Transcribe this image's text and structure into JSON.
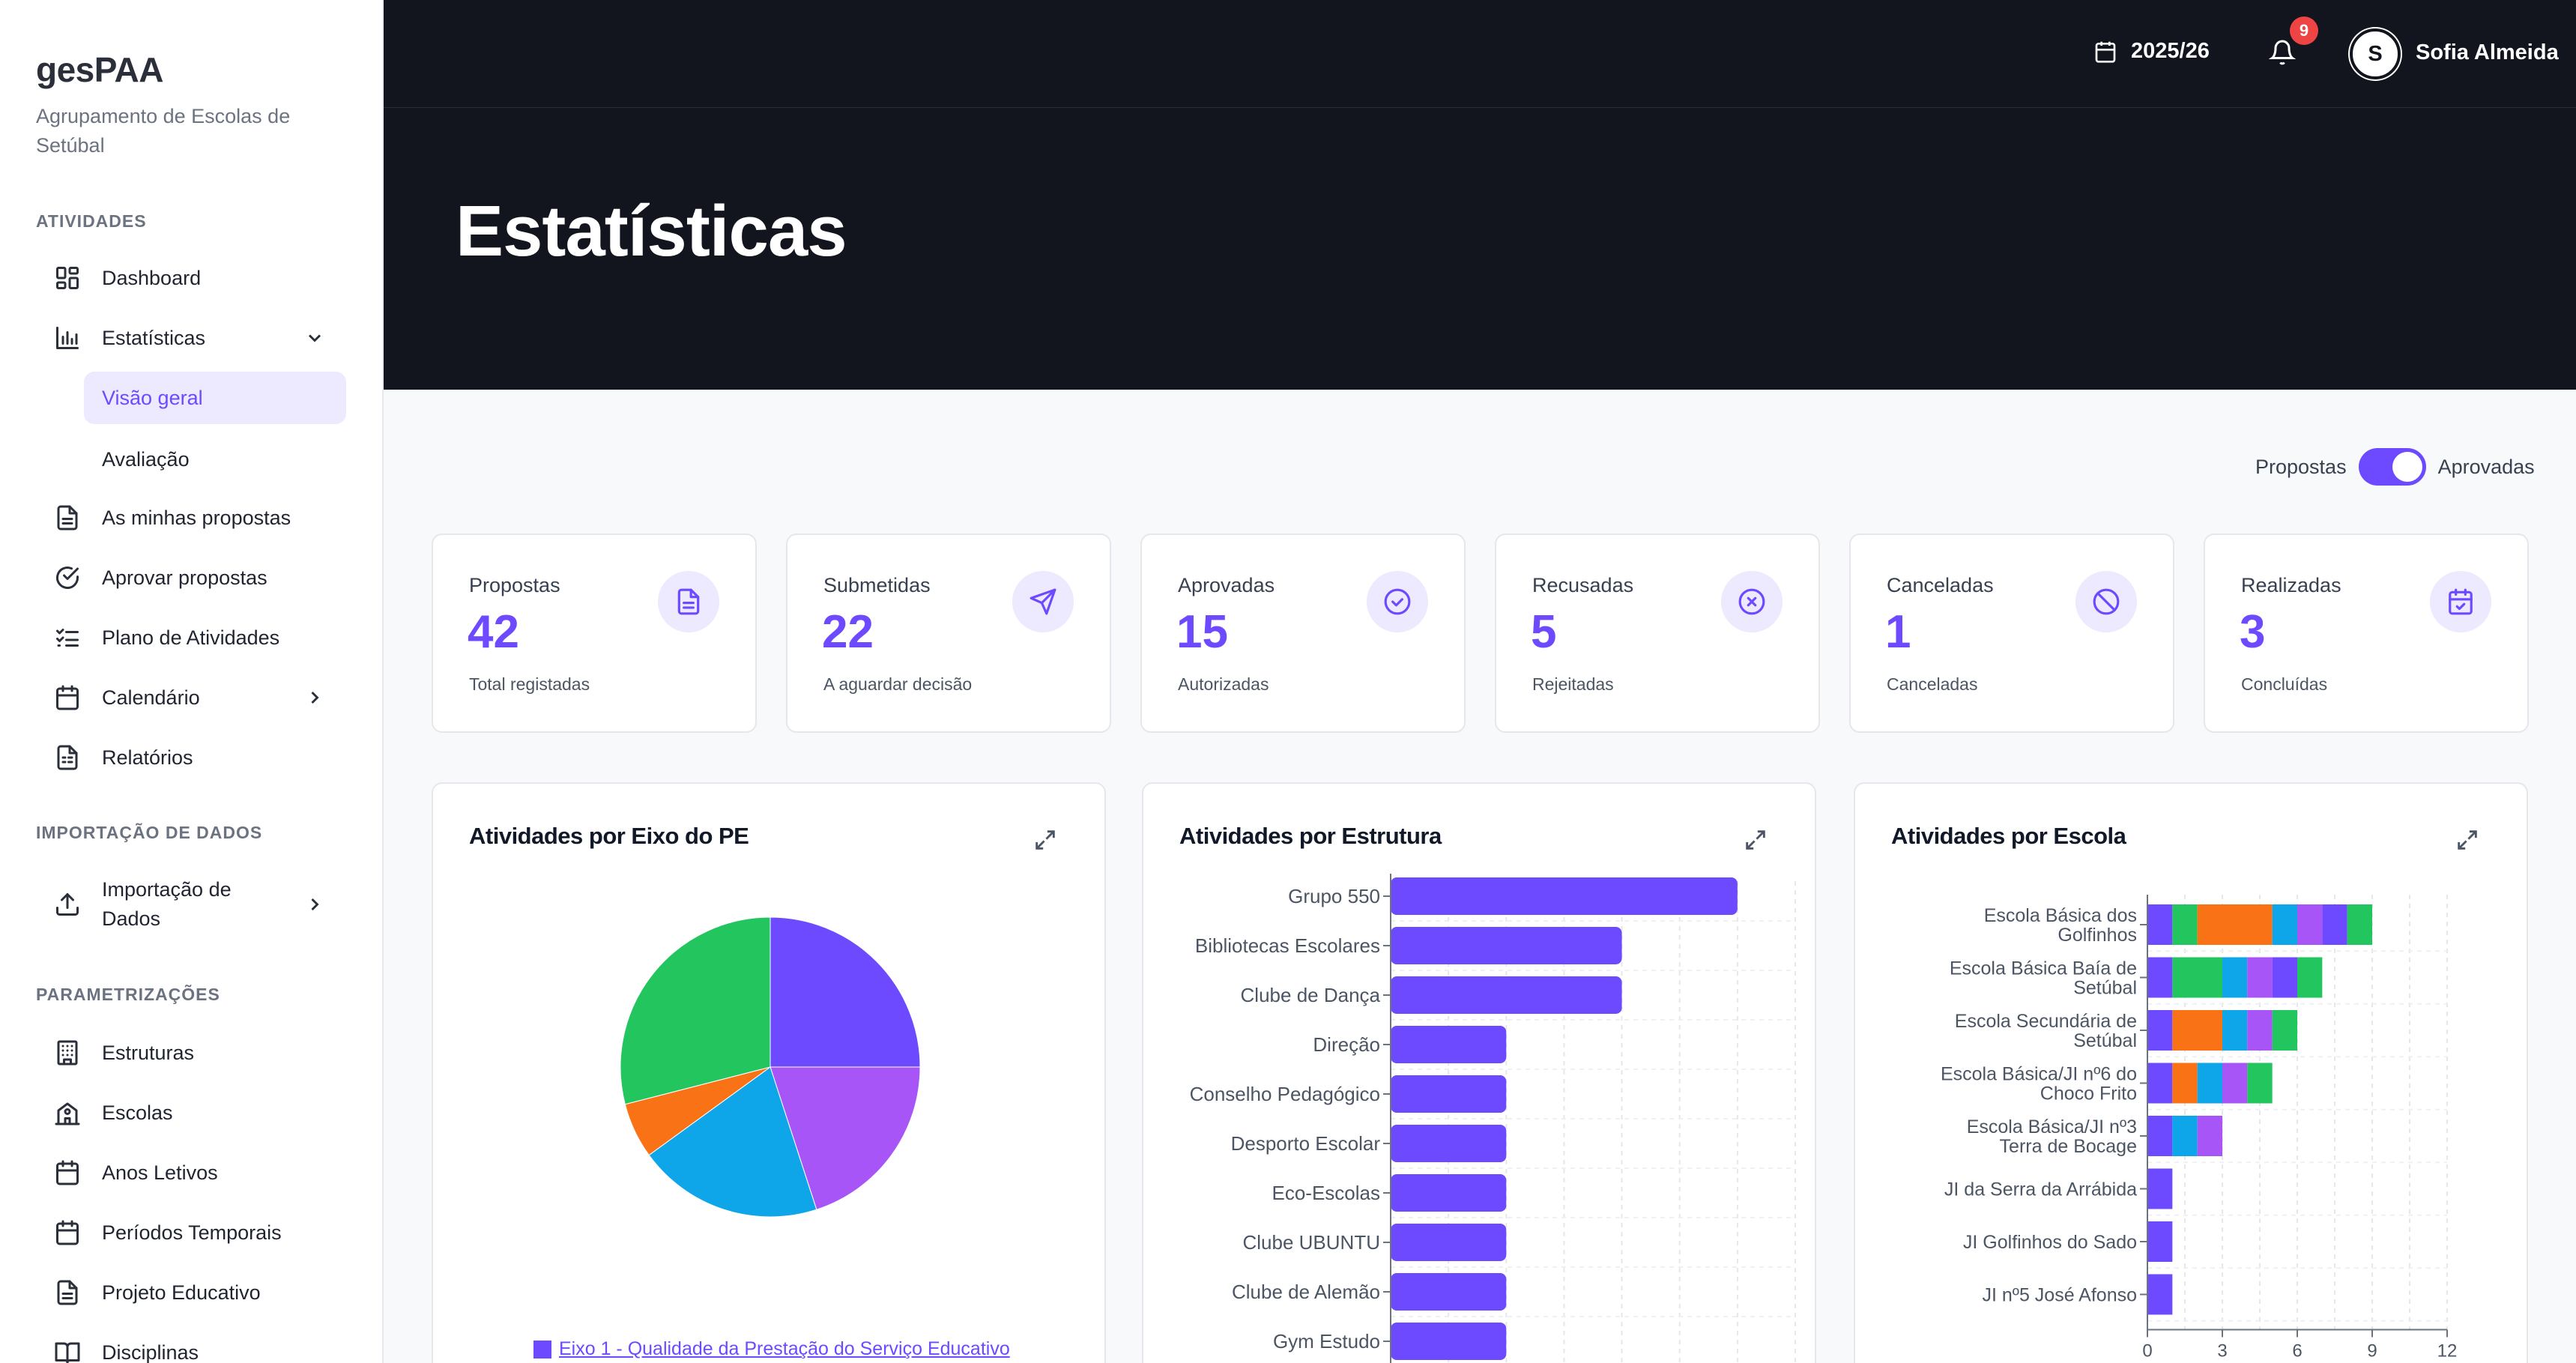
{
  "app": {
    "brand": "gesPAA",
    "org": "Agrupamento de Escolas de Setúbal"
  },
  "sidebar": {
    "sections": [
      {
        "title": "ATIVIDADES"
      },
      {
        "title": "IMPORTAÇÃO DE DADOS"
      },
      {
        "title": "PARAMETRIZAÇÕES"
      }
    ],
    "items": [
      {
        "label": "Dashboard",
        "icon": "dashboard-icon"
      },
      {
        "label": "Estatísticas",
        "icon": "bar-chart-icon",
        "expanded": true
      },
      {
        "label": "As minhas propostas",
        "icon": "document-icon"
      },
      {
        "label": "Aprovar propostas",
        "icon": "check-circle-icon"
      },
      {
        "label": "Plano de Atividades",
        "icon": "list-check-icon"
      },
      {
        "label": "Calendário",
        "icon": "calendar-icon"
      },
      {
        "label": "Relatórios",
        "icon": "report-icon"
      },
      {
        "label": "Importação de Dados",
        "icon": "upload-icon"
      },
      {
        "label": "Estruturas",
        "icon": "building-icon"
      },
      {
        "label": "Escolas",
        "icon": "school-icon"
      },
      {
        "label": "Anos Letivos",
        "icon": "calendar-icon"
      },
      {
        "label": "Períodos Temporais",
        "icon": "calendar-icon"
      },
      {
        "label": "Projeto Educativo",
        "icon": "document-icon"
      },
      {
        "label": "Disciplinas",
        "icon": "book-icon"
      }
    ],
    "subitems": [
      {
        "label": "Visão geral",
        "active": true
      },
      {
        "label": "Avaliação",
        "active": false
      }
    ]
  },
  "topbar": {
    "school_year": "2025/26",
    "notification_count": "9",
    "avatar_initial": "S",
    "user_name": "Sofia Almeida"
  },
  "page": {
    "title": "Estatísticas"
  },
  "toggle": {
    "left_label": "Propostas",
    "right_label": "Aprovadas",
    "state": "Aprovadas"
  },
  "stats": [
    {
      "label": "Propostas",
      "value": "42",
      "sub": "Total registadas",
      "icon": "document-icon"
    },
    {
      "label": "Submetidas",
      "value": "22",
      "sub": "A aguardar decisão",
      "icon": "send-icon"
    },
    {
      "label": "Aprovadas",
      "value": "15",
      "sub": "Autorizadas",
      "icon": "check-circle-icon"
    },
    {
      "label": "Recusadas",
      "value": "5",
      "sub": "Rejeitadas",
      "icon": "x-circle-icon"
    },
    {
      "label": "Canceladas",
      "value": "1",
      "sub": "Canceladas",
      "icon": "ban-icon"
    },
    {
      "label": "Realizadas",
      "value": "3",
      "sub": "Concluídas",
      "icon": "calendar-check-icon"
    }
  ],
  "colors": {
    "accent": "#6d4aff",
    "dark": "#12151d",
    "green": "#22c55e",
    "orange": "#f97316",
    "blue": "#0ea5e9",
    "purple": "#a855f7"
  },
  "chart_data": [
    {
      "type": "pie",
      "title": "Atividades por Eixo do PE",
      "slices": [
        {
          "name": "Eixo 1 - Qualidade da Prestação do Serviço Educativo",
          "value": 25,
          "color": "#6d4aff"
        },
        {
          "value": 20,
          "color": "#a855f7"
        },
        {
          "value": 20,
          "color": "#0ea5e9"
        },
        {
          "value": 6,
          "color": "#f97316"
        },
        {
          "value": 29,
          "color": "#22c55e"
        }
      ],
      "legend_visible": "Eixo 1 - Qualidade da Prestação do Serviço Educativo"
    },
    {
      "type": "bar",
      "orientation": "horizontal",
      "title": "Atividades por Estrutura",
      "categories": [
        "Grupo 550",
        "Bibliotecas Escolares",
        "Clube de Dança",
        "Direção",
        "Conselho Pedagógico",
        "Desporto Escolar",
        "Eco-Escolas",
        "Clube UBUNTU",
        "Clube de Alemão",
        "Gym Estudo"
      ],
      "values": [
        3,
        2,
        2,
        1,
        1,
        1,
        1,
        1,
        1,
        1
      ],
      "xlim": [
        0,
        3.5
      ],
      "grid": true
    },
    {
      "type": "bar",
      "orientation": "horizontal",
      "stacked": true,
      "title": "Atividades por Escola",
      "categories": [
        "Escola Básica dos Golfinhos",
        "Escola Básica Baía de Setúbal",
        "Escola Secundária de Setúbal",
        "Escola Básica/JI nº6 do Choco Frito",
        "Escola Básica/JI nº3 Terra de Bocage",
        "JI da Serra da Arrábida",
        "JI Golfinhos do Sado",
        "JI nº5 José Afonso"
      ],
      "segment_colors": [
        "#6d4aff",
        "#22c55e",
        "#f97316",
        "#0ea5e9",
        "#a855f7",
        "#6d4aff",
        "#22c55e"
      ],
      "series": [
        {
          "values": [
            1,
            1,
            1,
            1,
            1,
            1,
            1,
            1
          ]
        },
        {
          "values": [
            1,
            2,
            0,
            0,
            0,
            0,
            0,
            0
          ]
        },
        {
          "values": [
            3,
            0,
            2,
            1,
            0,
            0,
            0,
            0
          ]
        },
        {
          "values": [
            1,
            1,
            1,
            1,
            1,
            0,
            0,
            0
          ]
        },
        {
          "values": [
            1,
            1,
            1,
            1,
            1,
            0,
            0,
            0
          ]
        },
        {
          "values": [
            1,
            1,
            0,
            0,
            0,
            0,
            0,
            0
          ]
        },
        {
          "values": [
            1,
            1,
            1,
            1,
            0,
            0,
            0,
            0
          ]
        }
      ],
      "xticks": [
        "0",
        "3",
        "6",
        "9",
        "12"
      ],
      "xlim": [
        0,
        12
      ],
      "grid": true
    }
  ]
}
